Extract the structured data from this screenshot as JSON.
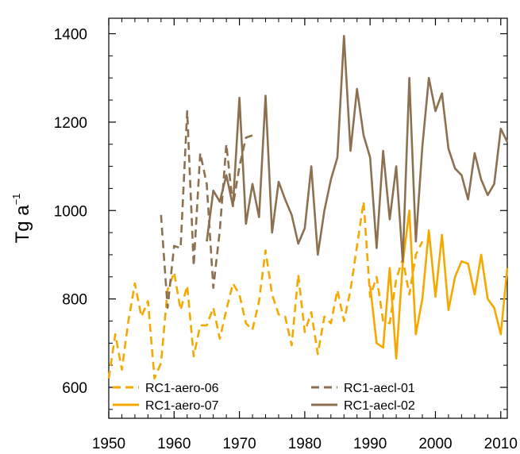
{
  "chart_data": {
    "type": "line",
    "title": "",
    "xlabel": "",
    "ylabel": "Tg a",
    "ylabel_superscript": "−1",
    "xlim": [
      1950,
      2011
    ],
    "ylim": [
      530,
      1435
    ],
    "x_ticks": [
      1950,
      1960,
      1970,
      1980,
      1990,
      2000,
      2010
    ],
    "y_ticks": [
      600,
      800,
      1000,
      1200,
      1400
    ],
    "grid": false,
    "legend_position": "bottom",
    "colors": {
      "orange": "#F5A800",
      "brown": "#8C7050"
    },
    "series": [
      {
        "name": "RC1-aero-06",
        "color": "#F5A800",
        "dashed": true,
        "x": [
          1950,
          1951,
          1952,
          1953,
          1954,
          1955,
          1956,
          1957,
          1958,
          1959,
          1960,
          1961,
          1962,
          1963,
          1964,
          1965,
          1966,
          1967,
          1968,
          1969,
          1970,
          1971,
          1972,
          1973,
          1974,
          1975,
          1976,
          1977,
          1978,
          1979,
          1980,
          1981,
          1982,
          1983,
          1984,
          1985,
          1986,
          1987,
          1988,
          1989,
          1990,
          1991,
          1992,
          1993,
          1994,
          1995,
          1996,
          1997,
          1998
        ],
        "y": [
          620,
          720,
          640,
          750,
          835,
          760,
          795,
          620,
          655,
          820,
          860,
          775,
          830,
          670,
          740,
          740,
          780,
          710,
          775,
          835,
          810,
          745,
          730,
          795,
          910,
          810,
          765,
          760,
          695,
          855,
          725,
          770,
          675,
          760,
          745,
          820,
          750,
          820,
          920,
          1020,
          805,
          850,
          750,
          745,
          845,
          890,
          810,
          900,
          930
        ]
      },
      {
        "name": "RC1-aero-07",
        "color": "#F5A800",
        "dashed": false,
        "x": [
          1990,
          1991,
          1992,
          1993,
          1994,
          1995,
          1996,
          1997,
          1998,
          1999,
          2000,
          2001,
          2002,
          2003,
          2004,
          2005,
          2006,
          2007,
          2008,
          2009,
          2010,
          2011
        ],
        "y": [
          830,
          700,
          690,
          870,
          665,
          880,
          1000,
          720,
          800,
          955,
          805,
          945,
          775,
          850,
          885,
          880,
          810,
          900,
          800,
          780,
          720,
          870
        ]
      },
      {
        "name": "RC1-aecl-01",
        "color": "#8C7050",
        "dashed": true,
        "x": [
          1958,
          1959,
          1960,
          1961,
          1962,
          1963,
          1964,
          1965,
          1966,
          1967,
          1968,
          1969,
          1970,
          1971,
          1972
        ],
        "y": [
          990,
          780,
          920,
          915,
          1225,
          875,
          1130,
          1060,
          825,
          955,
          1150,
          1010,
          1100,
          1165,
          1170
        ]
      },
      {
        "name": "RC1-aecl-02",
        "color": "#8C7050",
        "dashed": false,
        "x": [
          1965,
          1966,
          1967,
          1968,
          1969,
          1970,
          1971,
          1972,
          1973,
          1974,
          1975,
          1976,
          1977,
          1978,
          1979,
          1980,
          1981,
          1982,
          1983,
          1984,
          1985,
          1986,
          1987,
          1988,
          1989,
          1990,
          1991,
          1992,
          1993,
          1994,
          1995,
          1996,
          1997,
          1998,
          1999,
          2000,
          2001,
          2002,
          2003,
          2004,
          2005,
          2006,
          2007,
          2008,
          2009,
          2010,
          2011
        ],
        "y": [
          930,
          1045,
          1020,
          1080,
          1010,
          1255,
          970,
          1060,
          985,
          1260,
          950,
          1065,
          1025,
          990,
          925,
          960,
          1100,
          900,
          1000,
          1070,
          1120,
          1395,
          1135,
          1275,
          1170,
          1120,
          915,
          1135,
          980,
          1100,
          885,
          1300,
          930,
          1145,
          1300,
          1225,
          1265,
          1140,
          1095,
          1080,
          1025,
          1130,
          1070,
          1035,
          1060,
          1185,
          1155
        ]
      }
    ]
  }
}
